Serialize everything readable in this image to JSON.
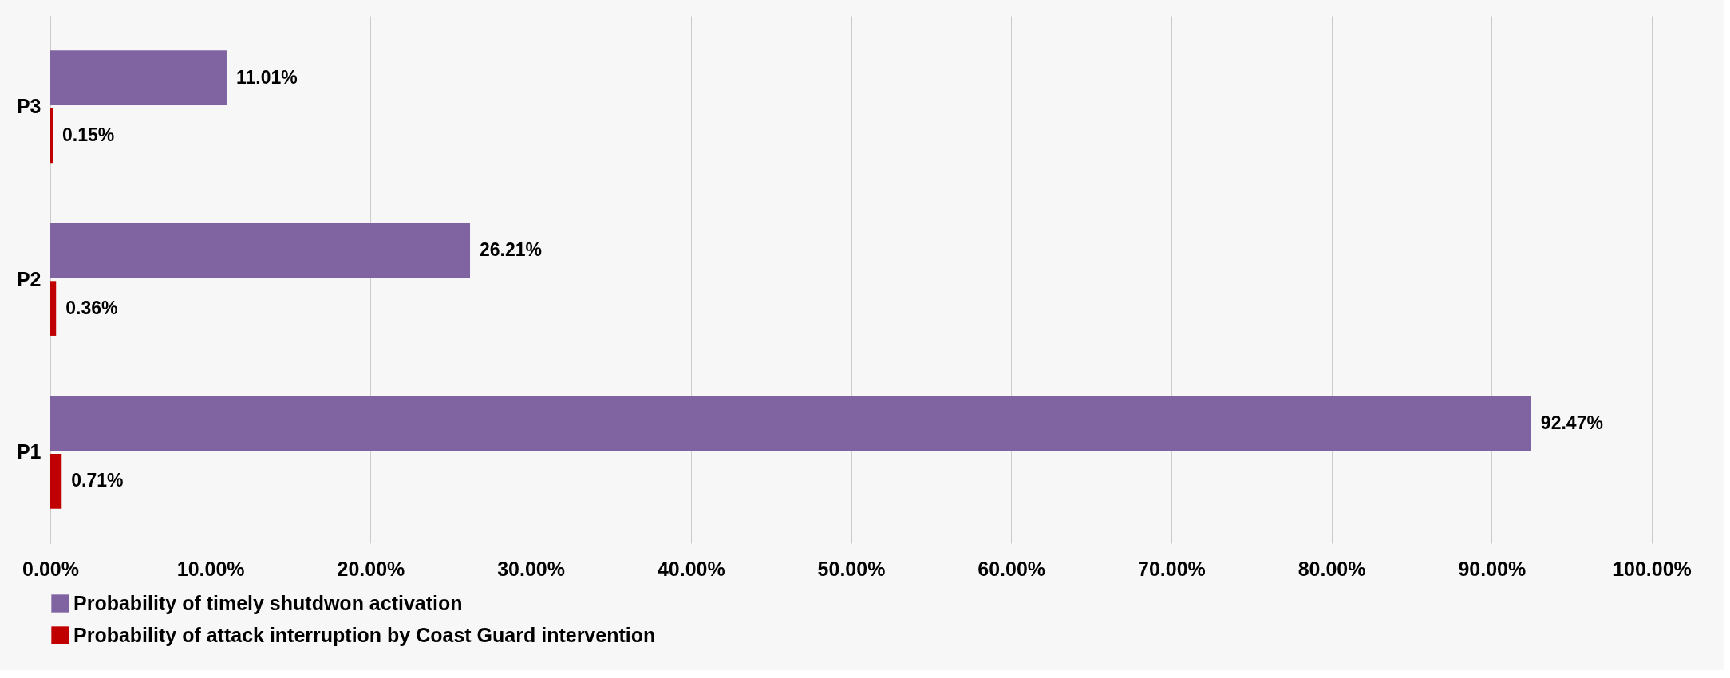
{
  "chart_data": {
    "type": "bar",
    "orientation": "horizontal",
    "categories": [
      "P3",
      "P2",
      "P1"
    ],
    "series": [
      {
        "name": "Probability of timely shutdwon activation",
        "color": "#8064a2",
        "values": [
          11.01,
          26.21,
          92.47
        ],
        "value_labels": [
          "11.01%",
          "26.21%",
          "92.47%"
        ]
      },
      {
        "name": "Probability of attack interruption by Coast Guard intervention",
        "color": "#c00000",
        "values": [
          0.15,
          0.36,
          0.71
        ],
        "value_labels": [
          "0.15%",
          "0.36%",
          "0.71%"
        ]
      }
    ],
    "xlim": [
      0,
      100
    ],
    "xticks": [
      {
        "value": 0,
        "label": "0.00%"
      },
      {
        "value": 10,
        "label": "10.00%"
      },
      {
        "value": 20,
        "label": "20.00%"
      },
      {
        "value": 30,
        "label": "30.00%"
      },
      {
        "value": 40,
        "label": "40.00%"
      },
      {
        "value": 50,
        "label": "50.00%"
      },
      {
        "value": 60,
        "label": "60.00%"
      },
      {
        "value": 70,
        "label": "70.00%"
      },
      {
        "value": 80,
        "label": "80.00%"
      },
      {
        "value": 90,
        "label": "90.00%"
      },
      {
        "value": 100,
        "label": "100.00%"
      }
    ],
    "grid": "x",
    "legend": "bottom"
  }
}
